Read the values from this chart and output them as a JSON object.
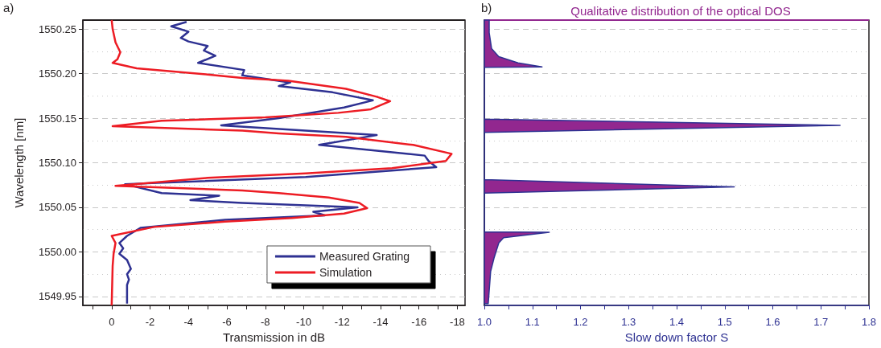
{
  "chart_data": [
    {
      "type": "line",
      "orientation": "horizontal",
      "xlabel": "Transmission in dB",
      "ylabel": "Wavelength [nm]",
      "annotations": [
        "a)"
      ],
      "legend": "bottom right",
      "grid": "y",
      "marker": "none",
      "xlim": [
        1.5,
        -18.4
      ],
      "xticks": [
        {
          "value": 1,
          "label": null
        },
        0,
        {
          "value": -1,
          "label": null
        },
        -2,
        {
          "value": -3,
          "label": null
        },
        -4,
        {
          "value": -5,
          "label": null
        },
        -6,
        {
          "value": -7,
          "label": null
        },
        -8,
        {
          "value": -9,
          "label": null
        },
        -10,
        {
          "value": -11,
          "label": null
        },
        -12,
        {
          "value": -13,
          "label": null
        },
        -14,
        {
          "value": -15,
          "label": null
        },
        -16,
        {
          "value": -17,
          "label": null
        },
        -18
      ],
      "ylim": [
        1549.94,
        1550.26
      ],
      "yticks": [
        {
          "value": 1549.95,
          "label": "1549.95"
        },
        {
          "value": 1549.975,
          "label": null
        },
        {
          "value": 1550,
          "label": "1550.00"
        },
        {
          "value": 1550.025,
          "label": null
        },
        {
          "value": 1550.05,
          "label": "1550.05"
        },
        {
          "value": 1550.075,
          "label": null
        },
        {
          "value": 1550.1,
          "label": "1550.10"
        },
        {
          "value": 1550.125,
          "label": null
        },
        {
          "value": 1550.15,
          "label": "1550.15"
        },
        {
          "value": 1550.175,
          "label": null
        },
        {
          "value": 1550.2,
          "label": "1550.20"
        },
        {
          "value": 1550.225,
          "label": null
        },
        {
          "value": 1550.25,
          "label": "1550.25"
        }
      ],
      "series": [
        {
          "name": "Measured Grating",
          "color": "#2e3192",
          "x": [
            1550.258,
            1550.253,
            1550.247,
            1550.24,
            1550.236,
            1550.231,
            1550.226,
            1550.22,
            1550.212,
            1550.204,
            1550.198,
            1550.19,
            1550.186,
            1550.179,
            1550.17,
            1550.162,
            1550.15,
            1550.142,
            1550.131,
            1550.12,
            1550.108,
            1550.102,
            1550.095,
            1550.084,
            1550.076,
            1550.066,
            1550.063,
            1550.058,
            1550.055,
            1550.05,
            1550.045,
            1550.041,
            1550.036,
            1550.027,
            1550.018,
            1550.01,
            1550.004,
            1549.998,
            1549.991,
            1549.981,
            1549.975,
            1549.969,
            1549.963,
            1549.942
          ],
          "values": [
            -3.9,
            -3.1,
            -4.0,
            -3.6,
            -4.0,
            -5.0,
            -4.8,
            -5.4,
            -4.5,
            -6.9,
            -6.8,
            -9.3,
            -8.7,
            -11.5,
            -13.6,
            -12.1,
            -8.7,
            -5.7,
            -13.8,
            -10.8,
            -16.3,
            -16.5,
            -16.9,
            -10.1,
            -0.7,
            -2.6,
            -5.6,
            -4.1,
            -6.8,
            -12.8,
            -10.5,
            -11.1,
            -5.9,
            -1.5,
            -0.8,
            -0.4,
            -0.6,
            -0.4,
            -0.8,
            -1.0,
            -0.8,
            -0.9,
            -0.8,
            -0.8
          ]
        },
        {
          "name": "Simulation",
          "color": "#ed1c24",
          "x": [
            1550.26,
            1550.25,
            1550.235,
            1550.224,
            1550.216,
            1550.212,
            1550.206,
            1550.199,
            1550.195,
            1550.192,
            1550.183,
            1550.174,
            1550.169,
            1550.16,
            1550.156,
            1550.151,
            1550.147,
            1550.141,
            1550.136,
            1550.133,
            1550.129,
            1550.12,
            1550.11,
            1550.102,
            1550.094,
            1550.088,
            1550.083,
            1550.074,
            1550.069,
            1550.066,
            1550.061,
            1550.055,
            1550.049,
            1550.043,
            1550.038,
            1550.034,
            1550.028,
            1550.018,
            1550.01,
            1549.998,
            1549.984,
            1549.94
          ],
          "values": [
            0,
            -0.05,
            -0.2,
            -0.45,
            -0.3,
            -0.05,
            -1.3,
            -5.0,
            -6.8,
            -9.2,
            -12.2,
            -13.8,
            -14.5,
            -13.5,
            -11.8,
            -8.0,
            -2.6,
            -0.05,
            -6.8,
            -8.7,
            -12.2,
            -15.7,
            -17.7,
            -17.4,
            -14.6,
            -10.1,
            -5.0,
            -0.2,
            -6.8,
            -8.7,
            -11.3,
            -12.9,
            -13.3,
            -12.1,
            -9.4,
            -5.9,
            -2.2,
            0,
            -0.2,
            -0.1,
            -0.05,
            0
          ]
        }
      ]
    },
    {
      "type": "area",
      "orientation": "horizontal",
      "title": "Qualitative distribution of the optical DOS",
      "xlabel": "Slow down factor S",
      "annotations": [
        "b)"
      ],
      "grid": "y",
      "tick_labels": "x",
      "xlim": [
        1.0,
        1.8
      ],
      "yticks": [
        {
          "value": 1549.95,
          "label": null
        },
        {
          "value": 1549.975,
          "label": null
        },
        {
          "value": 1550,
          "label": null
        },
        {
          "value": 1550.025,
          "label": null
        },
        {
          "value": 1550.05,
          "label": null
        },
        {
          "value": 1550.075,
          "label": null
        },
        {
          "value": 1550.1,
          "label": null
        },
        {
          "value": 1550.125,
          "label": null
        },
        {
          "value": 1550.15,
          "label": null
        },
        {
          "value": 1550.175,
          "label": null
        },
        {
          "value": 1550.2,
          "label": null
        },
        {
          "value": 1550.225,
          "label": null
        },
        {
          "value": 1550.25,
          "label": null
        }
      ],
      "xticks": [
        {
          "value": 1,
          "label": "1.0"
        },
        {
          "value": 1.05,
          "label": null
        },
        {
          "value": 1.1,
          "label": "1.1"
        },
        {
          "value": 1.15,
          "label": null
        },
        {
          "value": 1.2,
          "label": "1.2"
        },
        {
          "value": 1.25,
          "label": null
        },
        {
          "value": 1.3,
          "label": "1.3"
        },
        {
          "value": 1.35,
          "label": null
        },
        {
          "value": 1.4,
          "label": "1.4"
        },
        {
          "value": 1.45,
          "label": null
        },
        {
          "value": 1.5,
          "label": "1.5"
        },
        {
          "value": 1.55,
          "label": null
        },
        {
          "value": 1.6,
          "label": "1.6"
        },
        {
          "value": 1.65,
          "label": null
        },
        {
          "value": 1.7,
          "label": "1.7"
        },
        {
          "value": 1.75,
          "label": null
        },
        {
          "value": 1.8,
          "label": "1.8"
        }
      ],
      "ylim": [
        1549.94,
        1550.26
      ],
      "series": [
        {
          "color": "#92278f",
          "x": [
            1550.26,
            1550.246,
            1550.228,
            1550.219,
            1550.212,
            1550.2075,
            1550.207,
            1550.149,
            1550.142,
            1550.134,
            1550.081,
            1550.073,
            1550.066,
            1550.0225,
            1550.022,
            1550.016,
            1550.01,
            1549.993,
            1549.978,
            1549.942
          ],
          "values": [
            1.01,
            1.01,
            1.015,
            1.03,
            1.07,
            1.12,
            1.0,
            1.0,
            1.74,
            1.0,
            1.0,
            1.52,
            1.0,
            1.0,
            1.135,
            1.04,
            1.03,
            1.02,
            1.013,
            1.008
          ]
        }
      ]
    }
  ]
}
